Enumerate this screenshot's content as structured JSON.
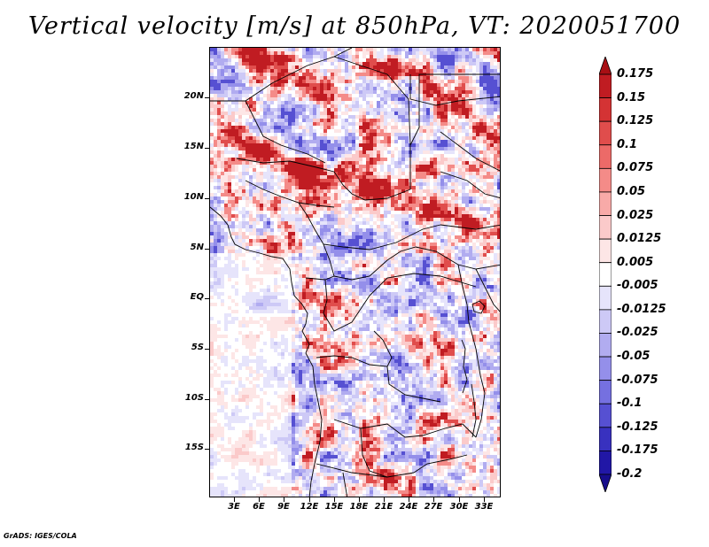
{
  "title": "Vertical velocity [m/s] at 850hPa, VT: 2020051700",
  "credit": "GrADS: IGES/COLA",
  "lat_labels": [
    "20N",
    "15N",
    "10N",
    "5N",
    "EQ",
    "5S",
    "10S",
    "15S"
  ],
  "lon_labels": [
    "3E",
    "6E",
    "9E",
    "12E",
    "15E",
    "18E",
    "21E",
    "24E",
    "27E",
    "30E",
    "33E"
  ],
  "colorbar": {
    "labels": [
      "0.175",
      "0.15",
      "0.125",
      "0.1",
      "0.075",
      "0.05",
      "0.025",
      "0.0125",
      "0.005",
      "-0.005",
      "-0.0125",
      "-0.025",
      "-0.05",
      "-0.075",
      "-0.1",
      "-0.125",
      "-0.175",
      "-0.2"
    ],
    "colors": [
      "#a80f14",
      "#c01c22",
      "#d43334",
      "#e04d4c",
      "#ec6a68",
      "#f48b88",
      "#f8aaa8",
      "#fbcaca",
      "#fde6e6",
      "#ffffff",
      "#e6e4fb",
      "#cdc9f6",
      "#b1acf0",
      "#948fea",
      "#7570e0",
      "#5650d2",
      "#3831bf",
      "#2117a6",
      "#170d8c"
    ]
  }
}
